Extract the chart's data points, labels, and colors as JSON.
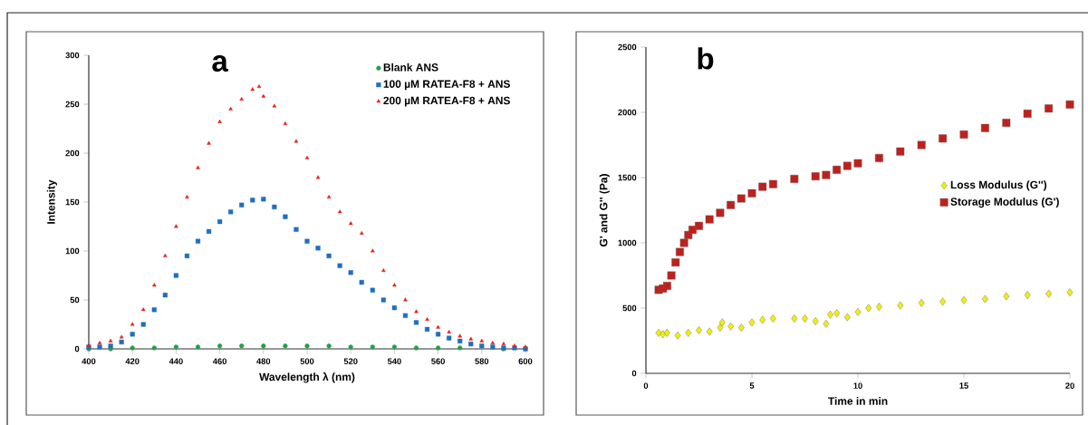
{
  "chart_data": [
    {
      "type": "scatter",
      "title": "a",
      "xlabel": "Wavelength λ (nm)",
      "ylabel": "Intensity",
      "xlim": [
        400,
        600
      ],
      "ylim": [
        0,
        300
      ],
      "xticks": [
        400,
        420,
        440,
        460,
        480,
        500,
        520,
        540,
        560,
        580,
        600
      ],
      "yticks": [
        0,
        50,
        100,
        150,
        200,
        250,
        300
      ],
      "legend": "top right",
      "grid": false,
      "series": [
        {
          "name": "Blank ANS",
          "color": "#22a04a",
          "marker": "circle",
          "x": [
            400,
            410,
            420,
            430,
            440,
            450,
            460,
            470,
            480,
            490,
            500,
            510,
            520,
            530,
            540,
            550,
            560,
            570,
            580,
            590,
            600
          ],
          "values": [
            0,
            0,
            1,
            1,
            2,
            2,
            3,
            3,
            3,
            3,
            3,
            3,
            2,
            2,
            2,
            1,
            1,
            1,
            null,
            0,
            0
          ]
        },
        {
          "name": "100 µM RATEA-F8 + ANS",
          "color": "#1f6fc0",
          "marker": "square",
          "x": [
            400,
            405,
            410,
            415,
            420,
            425,
            430,
            435,
            440,
            445,
            450,
            455,
            460,
            465,
            470,
            475,
            480,
            485,
            490,
            495,
            500,
            505,
            510,
            515,
            520,
            525,
            530,
            535,
            540,
            545,
            550,
            555,
            560,
            565,
            570,
            575,
            580,
            585,
            590,
            595,
            600
          ],
          "values": [
            2,
            2,
            3,
            7,
            15,
            25,
            40,
            55,
            75,
            95,
            110,
            120,
            130,
            140,
            147,
            152,
            153,
            145,
            135,
            122,
            110,
            103,
            95,
            85,
            78,
            68,
            60,
            50,
            42,
            34,
            27,
            20,
            15,
            11,
            8,
            5,
            3,
            2,
            1,
            1,
            0
          ]
        },
        {
          "name": "200 µM RATEA-F8 + ANS",
          "color": "#e8201c",
          "marker": "triangle",
          "x": [
            400,
            405,
            410,
            415,
            420,
            425,
            430,
            435,
            440,
            445,
            450,
            455,
            460,
            465,
            470,
            475,
            478,
            480,
            485,
            490,
            495,
            500,
            505,
            510,
            515,
            520,
            525,
            530,
            535,
            540,
            545,
            550,
            555,
            560,
            565,
            570,
            575,
            580,
            585,
            590,
            595,
            600
          ],
          "values": [
            3,
            6,
            8,
            12,
            25,
            40,
            65,
            95,
            125,
            155,
            185,
            210,
            232,
            245,
            255,
            265,
            268,
            258,
            248,
            230,
            212,
            195,
            175,
            155,
            140,
            128,
            118,
            100,
            80,
            65,
            50,
            38,
            30,
            22,
            17,
            13,
            10,
            8,
            6,
            5,
            3,
            2
          ]
        }
      ]
    },
    {
      "type": "scatter",
      "title": "b",
      "xlabel": "Time in min",
      "ylabel": "G' and G'' (Pa)",
      "xlim": [
        0,
        20
      ],
      "ylim": [
        0,
        2500
      ],
      "xticks": [
        0,
        5,
        10,
        15,
        20
      ],
      "yticks": [
        0,
        500,
        1000,
        1500,
        2000,
        2500
      ],
      "legend": "right",
      "grid": false,
      "series": [
        {
          "name": "Loss Modulus (G'')",
          "color": "#f0ee10",
          "marker": "diamond",
          "x": [
            0.6,
            0.8,
            1.0,
            1.5,
            2,
            2.5,
            3,
            3.5,
            3.6,
            4,
            4.5,
            5,
            5.5,
            6,
            7,
            7.5,
            8,
            8.5,
            8.7,
            9,
            9.5,
            10,
            10.5,
            11,
            12,
            13,
            14,
            15,
            16,
            17,
            18,
            19,
            20
          ],
          "values": [
            310,
            300,
            310,
            290,
            310,
            330,
            320,
            350,
            390,
            360,
            350,
            390,
            410,
            420,
            420,
            420,
            400,
            380,
            450,
            460,
            430,
            470,
            500,
            510,
            520,
            540,
            550,
            560,
            570,
            590,
            600,
            610,
            620
          ]
        },
        {
          "name": "Storage Modulus (G')",
          "color": "#c0201c",
          "marker": "square",
          "x": [
            0.6,
            0.8,
            1.0,
            1.2,
            1.4,
            1.6,
            1.8,
            2.0,
            2.2,
            2.5,
            3,
            3.5,
            4,
            4.5,
            5,
            5.5,
            6,
            7,
            8,
            8.5,
            9,
            9.5,
            10,
            11,
            12,
            13,
            14,
            15,
            16,
            17,
            18,
            19,
            20
          ],
          "values": [
            640,
            650,
            670,
            750,
            850,
            930,
            1000,
            1060,
            1100,
            1130,
            1180,
            1230,
            1290,
            1340,
            1380,
            1430,
            1450,
            1490,
            1510,
            1520,
            1560,
            1590,
            1610,
            1650,
            1700,
            1750,
            1800,
            1830,
            1880,
            1920,
            1990,
            2030,
            2060
          ]
        }
      ]
    }
  ]
}
